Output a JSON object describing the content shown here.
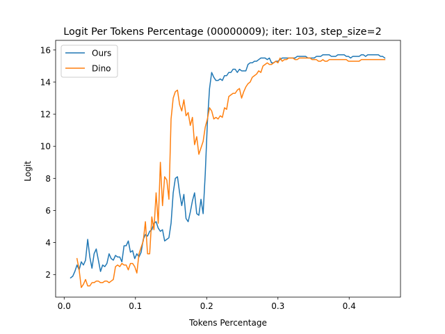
{
  "chart_data": {
    "type": "line",
    "title": "Logit Per Tokens Percentage (00000009); iter: 103, step_size=2",
    "xlabel": "Tokens Percentage",
    "ylabel": "Logit",
    "xlim": [
      -0.012,
      0.472
    ],
    "ylim": [
      0.6,
      16.6
    ],
    "xticks": [
      0.0,
      0.1,
      0.2,
      0.3,
      0.4
    ],
    "xtick_labels": [
      "0.0",
      "0.1",
      "0.2",
      "0.3",
      "0.4"
    ],
    "yticks": [
      2,
      4,
      6,
      8,
      10,
      12,
      14,
      16
    ],
    "ytick_labels": [
      "2",
      "4",
      "6",
      "8",
      "10",
      "12",
      "14",
      "16"
    ],
    "grid": false,
    "legend_position": "top-left",
    "series": [
      {
        "name": "Ours",
        "color": "#1f77b4",
        "points": [
          [
            0.009,
            1.8
          ],
          [
            0.012,
            1.9
          ],
          [
            0.015,
            2.2
          ],
          [
            0.018,
            2.6
          ],
          [
            0.021,
            2.3
          ],
          [
            0.024,
            2.8
          ],
          [
            0.027,
            2.6
          ],
          [
            0.03,
            2.9
          ],
          [
            0.033,
            4.2
          ],
          [
            0.036,
            3.1
          ],
          [
            0.039,
            2.4
          ],
          [
            0.042,
            3.3
          ],
          [
            0.045,
            3.6
          ],
          [
            0.048,
            2.9
          ],
          [
            0.051,
            2.2
          ],
          [
            0.054,
            2.6
          ],
          [
            0.057,
            2.5
          ],
          [
            0.06,
            2.7
          ],
          [
            0.063,
            3.3
          ],
          [
            0.066,
            3.0
          ],
          [
            0.069,
            2.9
          ],
          [
            0.072,
            3.2
          ],
          [
            0.075,
            3.1
          ],
          [
            0.078,
            3.1
          ],
          [
            0.081,
            2.8
          ],
          [
            0.084,
            3.8
          ],
          [
            0.087,
            3.8
          ],
          [
            0.09,
            4.1
          ],
          [
            0.093,
            3.4
          ],
          [
            0.096,
            3.5
          ],
          [
            0.099,
            3.0
          ],
          [
            0.102,
            3.3
          ],
          [
            0.105,
            3.1
          ],
          [
            0.108,
            3.4
          ],
          [
            0.111,
            4.2
          ],
          [
            0.114,
            4.5
          ],
          [
            0.117,
            4.4
          ],
          [
            0.12,
            4.7
          ],
          [
            0.123,
            4.8
          ],
          [
            0.126,
            5.2
          ],
          [
            0.129,
            5.3
          ],
          [
            0.132,
            4.9
          ],
          [
            0.135,
            4.7
          ],
          [
            0.138,
            4.8
          ],
          [
            0.141,
            4.1
          ],
          [
            0.144,
            4.2
          ],
          [
            0.147,
            4.3
          ],
          [
            0.15,
            5.2
          ],
          [
            0.153,
            7.1
          ],
          [
            0.156,
            8.0
          ],
          [
            0.159,
            8.1
          ],
          [
            0.162,
            7.1
          ],
          [
            0.165,
            6.3
          ],
          [
            0.168,
            7.0
          ],
          [
            0.171,
            5.5
          ],
          [
            0.174,
            5.3
          ],
          [
            0.177,
            5.9
          ],
          [
            0.18,
            6.6
          ],
          [
            0.183,
            7.1
          ],
          [
            0.186,
            5.8
          ],
          [
            0.189,
            5.7
          ],
          [
            0.192,
            6.7
          ],
          [
            0.195,
            5.8
          ],
          [
            0.198,
            8.3
          ],
          [
            0.201,
            11.5
          ],
          [
            0.204,
            13.6
          ],
          [
            0.207,
            14.6
          ],
          [
            0.21,
            14.3
          ],
          [
            0.213,
            14.1
          ],
          [
            0.216,
            14.1
          ],
          [
            0.219,
            14.2
          ],
          [
            0.222,
            14.1
          ],
          [
            0.225,
            14.4
          ],
          [
            0.228,
            14.4
          ],
          [
            0.231,
            14.6
          ],
          [
            0.234,
            14.6
          ],
          [
            0.237,
            14.8
          ],
          [
            0.24,
            14.8
          ],
          [
            0.243,
            14.6
          ],
          [
            0.246,
            14.8
          ],
          [
            0.249,
            14.7
          ],
          [
            0.252,
            14.7
          ],
          [
            0.255,
            14.7
          ],
          [
            0.258,
            15.1
          ],
          [
            0.261,
            15.2
          ],
          [
            0.264,
            15.2
          ],
          [
            0.267,
            15.3
          ],
          [
            0.27,
            15.3
          ],
          [
            0.273,
            15.4
          ],
          [
            0.276,
            15.5
          ],
          [
            0.279,
            15.5
          ],
          [
            0.282,
            15.5
          ],
          [
            0.285,
            15.4
          ],
          [
            0.288,
            15.5
          ],
          [
            0.291,
            15.2
          ],
          [
            0.294,
            15.2
          ],
          [
            0.297,
            15.3
          ],
          [
            0.3,
            15.3
          ],
          [
            0.303,
            15.4
          ],
          [
            0.306,
            15.5
          ],
          [
            0.309,
            15.5
          ],
          [
            0.312,
            15.5
          ],
          [
            0.315,
            15.5
          ],
          [
            0.318,
            15.5
          ],
          [
            0.321,
            15.5
          ],
          [
            0.324,
            15.5
          ],
          [
            0.327,
            15.6
          ],
          [
            0.33,
            15.6
          ],
          [
            0.333,
            15.6
          ],
          [
            0.336,
            15.6
          ],
          [
            0.339,
            15.6
          ],
          [
            0.342,
            15.5
          ],
          [
            0.345,
            15.5
          ],
          [
            0.348,
            15.5
          ],
          [
            0.351,
            15.5
          ],
          [
            0.354,
            15.6
          ],
          [
            0.357,
            15.6
          ],
          [
            0.36,
            15.6
          ],
          [
            0.363,
            15.7
          ],
          [
            0.366,
            15.7
          ],
          [
            0.369,
            15.7
          ],
          [
            0.372,
            15.7
          ],
          [
            0.375,
            15.6
          ],
          [
            0.378,
            15.6
          ],
          [
            0.381,
            15.6
          ],
          [
            0.384,
            15.7
          ],
          [
            0.387,
            15.7
          ],
          [
            0.39,
            15.7
          ],
          [
            0.393,
            15.7
          ],
          [
            0.396,
            15.6
          ],
          [
            0.399,
            15.6
          ],
          [
            0.402,
            15.5
          ],
          [
            0.405,
            15.6
          ],
          [
            0.408,
            15.6
          ],
          [
            0.411,
            15.6
          ],
          [
            0.414,
            15.6
          ],
          [
            0.417,
            15.7
          ],
          [
            0.42,
            15.7
          ],
          [
            0.423,
            15.6
          ],
          [
            0.426,
            15.7
          ],
          [
            0.429,
            15.7
          ],
          [
            0.432,
            15.7
          ],
          [
            0.435,
            15.7
          ],
          [
            0.438,
            15.7
          ],
          [
            0.441,
            15.7
          ],
          [
            0.444,
            15.6
          ],
          [
            0.447,
            15.6
          ],
          [
            0.45,
            15.5
          ]
        ]
      },
      {
        "name": "Dino",
        "color": "#ff7f0e",
        "points": [
          [
            0.018,
            3.0
          ],
          [
            0.021,
            2.3
          ],
          [
            0.024,
            1.2
          ],
          [
            0.027,
            1.4
          ],
          [
            0.03,
            1.7
          ],
          [
            0.033,
            1.3
          ],
          [
            0.036,
            1.3
          ],
          [
            0.039,
            1.5
          ],
          [
            0.042,
            1.5
          ],
          [
            0.045,
            1.6
          ],
          [
            0.048,
            1.6
          ],
          [
            0.051,
            1.5
          ],
          [
            0.054,
            1.5
          ],
          [
            0.057,
            1.6
          ],
          [
            0.06,
            1.6
          ],
          [
            0.063,
            1.5
          ],
          [
            0.066,
            1.6
          ],
          [
            0.069,
            1.7
          ],
          [
            0.072,
            2.5
          ],
          [
            0.075,
            2.6
          ],
          [
            0.078,
            2.5
          ],
          [
            0.081,
            2.7
          ],
          [
            0.084,
            2.6
          ],
          [
            0.087,
            2.6
          ],
          [
            0.09,
            2.3
          ],
          [
            0.093,
            2.7
          ],
          [
            0.096,
            2.7
          ],
          [
            0.099,
            2.5
          ],
          [
            0.102,
            2.1
          ],
          [
            0.105,
            3.3
          ],
          [
            0.108,
            3.7
          ],
          [
            0.111,
            4.1
          ],
          [
            0.114,
            5.3
          ],
          [
            0.117,
            3.3
          ],
          [
            0.12,
            3.3
          ],
          [
            0.123,
            5.6
          ],
          [
            0.126,
            4.8
          ],
          [
            0.129,
            7.1
          ],
          [
            0.132,
            5.2
          ],
          [
            0.135,
            9.0
          ],
          [
            0.138,
            6.3
          ],
          [
            0.141,
            8.1
          ],
          [
            0.144,
            7.9
          ],
          [
            0.147,
            6.7
          ],
          [
            0.15,
            11.7
          ],
          [
            0.153,
            13.0
          ],
          [
            0.156,
            13.4
          ],
          [
            0.159,
            13.5
          ],
          [
            0.162,
            12.6
          ],
          [
            0.165,
            12.2
          ],
          [
            0.168,
            12.9
          ],
          [
            0.171,
            11.9
          ],
          [
            0.174,
            12.1
          ],
          [
            0.177,
            11.3
          ],
          [
            0.18,
            11.8
          ],
          [
            0.183,
            10.1
          ],
          [
            0.186,
            10.6
          ],
          [
            0.189,
            9.5
          ],
          [
            0.192,
            9.9
          ],
          [
            0.195,
            10.3
          ],
          [
            0.198,
            11.2
          ],
          [
            0.201,
            11.7
          ],
          [
            0.204,
            12.4
          ],
          [
            0.207,
            12.2
          ],
          [
            0.21,
            11.7
          ],
          [
            0.213,
            11.8
          ],
          [
            0.216,
            11.7
          ],
          [
            0.219,
            11.9
          ],
          [
            0.222,
            11.8
          ],
          [
            0.225,
            12.4
          ],
          [
            0.228,
            12.3
          ],
          [
            0.231,
            13.1
          ],
          [
            0.234,
            13.2
          ],
          [
            0.237,
            13.3
          ],
          [
            0.24,
            13.3
          ],
          [
            0.243,
            13.5
          ],
          [
            0.246,
            13.6
          ],
          [
            0.249,
            13.0
          ],
          [
            0.252,
            13.4
          ],
          [
            0.255,
            13.7
          ],
          [
            0.258,
            13.9
          ],
          [
            0.261,
            14.0
          ],
          [
            0.264,
            14.3
          ],
          [
            0.267,
            14.4
          ],
          [
            0.27,
            14.5
          ],
          [
            0.273,
            14.7
          ],
          [
            0.276,
            14.6
          ],
          [
            0.279,
            15.0
          ],
          [
            0.282,
            15.1
          ],
          [
            0.285,
            15.2
          ],
          [
            0.288,
            15.1
          ],
          [
            0.291,
            15.1
          ],
          [
            0.294,
            15.2
          ],
          [
            0.297,
            15.3
          ],
          [
            0.3,
            15.2
          ],
          [
            0.303,
            15.5
          ],
          [
            0.306,
            15.3
          ],
          [
            0.309,
            15.4
          ],
          [
            0.312,
            15.4
          ],
          [
            0.315,
            15.5
          ],
          [
            0.318,
            15.5
          ],
          [
            0.321,
            15.5
          ],
          [
            0.324,
            15.4
          ],
          [
            0.327,
            15.4
          ],
          [
            0.33,
            15.5
          ],
          [
            0.333,
            15.5
          ],
          [
            0.336,
            15.5
          ],
          [
            0.339,
            15.5
          ],
          [
            0.342,
            15.5
          ],
          [
            0.345,
            15.5
          ],
          [
            0.348,
            15.4
          ],
          [
            0.351,
            15.4
          ],
          [
            0.354,
            15.4
          ],
          [
            0.357,
            15.3
          ],
          [
            0.36,
            15.3
          ],
          [
            0.363,
            15.4
          ],
          [
            0.366,
            15.3
          ],
          [
            0.369,
            15.3
          ],
          [
            0.372,
            15.4
          ],
          [
            0.375,
            15.4
          ],
          [
            0.378,
            15.4
          ],
          [
            0.381,
            15.4
          ],
          [
            0.384,
            15.4
          ],
          [
            0.387,
            15.4
          ],
          [
            0.39,
            15.4
          ],
          [
            0.393,
            15.4
          ],
          [
            0.396,
            15.4
          ],
          [
            0.399,
            15.3
          ],
          [
            0.402,
            15.3
          ],
          [
            0.405,
            15.3
          ],
          [
            0.408,
            15.3
          ],
          [
            0.411,
            15.3
          ],
          [
            0.414,
            15.3
          ],
          [
            0.417,
            15.4
          ],
          [
            0.42,
            15.4
          ],
          [
            0.423,
            15.4
          ],
          [
            0.426,
            15.4
          ],
          [
            0.429,
            15.4
          ],
          [
            0.432,
            15.4
          ],
          [
            0.435,
            15.4
          ],
          [
            0.438,
            15.4
          ],
          [
            0.441,
            15.4
          ],
          [
            0.444,
            15.4
          ],
          [
            0.447,
            15.4
          ],
          [
            0.45,
            15.4
          ]
        ]
      }
    ]
  }
}
